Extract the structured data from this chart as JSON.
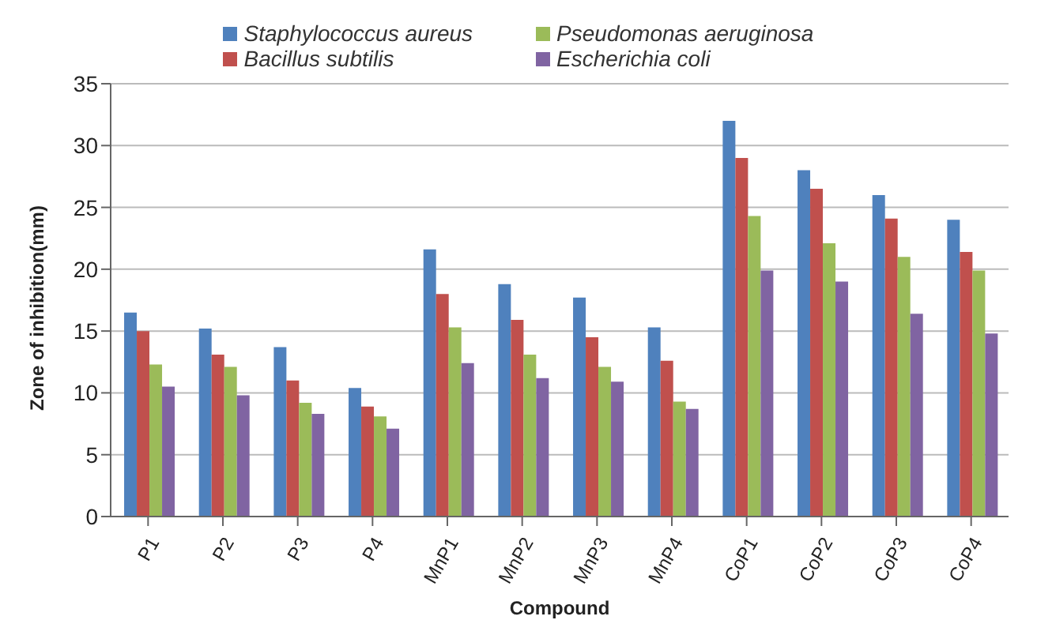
{
  "chart_data": {
    "type": "bar",
    "xlabel": "Compound",
    "ylabel": "Zone of inhibition(mm)",
    "categories": [
      "P1",
      "P2",
      "P3",
      "P4",
      "MnP1",
      "MnP2",
      "MnP3",
      "MnP4",
      "CoP1",
      "CoP2",
      "CoP3",
      "CoP4"
    ],
    "series": [
      {
        "name": "Staphylococcus aureus",
        "color": "#4f81bd",
        "values": [
          16.5,
          15.2,
          13.7,
          10.4,
          21.6,
          18.8,
          17.7,
          15.3,
          32,
          28,
          26,
          24
        ]
      },
      {
        "name": "Bacillus subtilis",
        "color": "#c0504d",
        "values": [
          15,
          13.1,
          11,
          8.9,
          18,
          15.9,
          14.5,
          12.6,
          29,
          26.5,
          24.1,
          21.4
        ]
      },
      {
        "name": "Pseudomonas aeruginosa",
        "color": "#9bbb59",
        "values": [
          12.3,
          12.1,
          9.2,
          8.1,
          15.3,
          13.1,
          12.1,
          9.3,
          24.3,
          22.1,
          21,
          19.9
        ]
      },
      {
        "name": "Escherichia coli",
        "color": "#8064a2",
        "values": [
          10.5,
          9.8,
          8.3,
          7.1,
          12.4,
          11.2,
          10.9,
          8.7,
          19.9,
          19,
          16.4,
          14.8
        ]
      }
    ],
    "ylim": [
      0,
      35
    ],
    "yticks": [
      0,
      5,
      10,
      15,
      20,
      25,
      30,
      35
    ],
    "grid": "y",
    "legend": "top"
  }
}
